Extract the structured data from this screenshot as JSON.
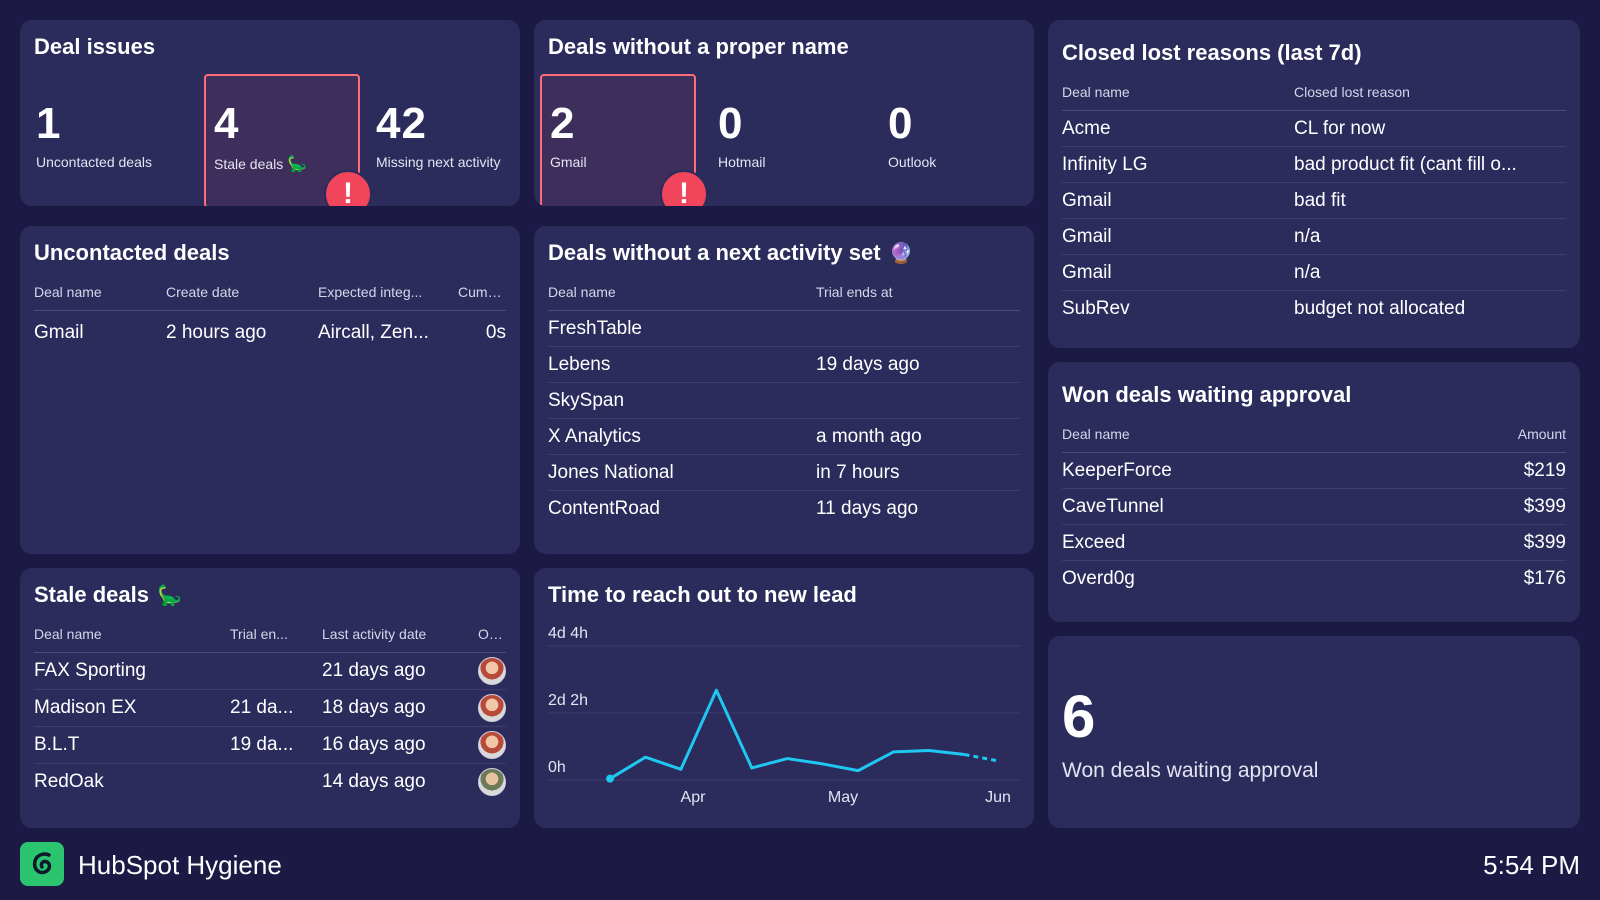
{
  "deal_issues": {
    "title": "Deal issues",
    "kpis": [
      {
        "value": "1",
        "label": "Uncontacted deals",
        "alert": false
      },
      {
        "value": "4",
        "label": "Stale deals",
        "alert": true
      },
      {
        "value": "42",
        "label": "Missing next activity",
        "alert": false
      }
    ],
    "alert_symbol": "!"
  },
  "improper_names": {
    "title": "Deals without a proper name",
    "kpis": [
      {
        "value": "2",
        "label": "Gmail",
        "alert": true
      },
      {
        "value": "0",
        "label": "Hotmail",
        "alert": false
      },
      {
        "value": "0",
        "label": "Outlook",
        "alert": false
      }
    ]
  },
  "closed_lost": {
    "title": "Closed lost reasons (last 7d)",
    "columns": [
      "Deal name",
      "Closed lost reason"
    ],
    "rows": [
      [
        "Acme",
        "CL for now"
      ],
      [
        "Infinity LG",
        "bad product fit (cant fill o..."
      ],
      [
        "Gmail",
        "bad fit"
      ],
      [
        "Gmail",
        "n/a"
      ],
      [
        "Gmail",
        "n/a"
      ],
      [
        "SubRev",
        "budget not allocated"
      ]
    ]
  },
  "uncontacted": {
    "title": "Uncontacted deals",
    "columns": [
      "Deal name",
      "Create date",
      "Expected integ...",
      "Cumul..."
    ],
    "rows": [
      [
        "Gmail",
        "2 hours ago",
        "Aircall, Zen...",
        "0s"
      ]
    ]
  },
  "no_next_activity": {
    "title": "Deals without a next activity set",
    "columns": [
      "Deal name",
      "Trial ends at"
    ],
    "rows": [
      [
        "FreshTable",
        ""
      ],
      [
        "Lebens",
        "19 days ago"
      ],
      [
        "SkySpan",
        ""
      ],
      [
        "X Analytics",
        "a month ago"
      ],
      [
        "Jones National",
        "in 7 hours"
      ],
      [
        "ContentRoad",
        "11 days ago"
      ]
    ]
  },
  "won_waiting": {
    "title": "Won deals waiting approval",
    "columns": [
      "Deal name",
      "Amount"
    ],
    "rows": [
      [
        "KeeperForce",
        "$219"
      ],
      [
        "CaveTunnel",
        "$399"
      ],
      [
        "Exceed",
        "$399"
      ],
      [
        "Overd0g",
        "$176"
      ]
    ]
  },
  "stale": {
    "title": "Stale deals",
    "columns": [
      "Deal name",
      "Trial en...",
      "Last activity date",
      "Ow..."
    ],
    "rows": [
      {
        "name": "FAX Sporting",
        "trial": "",
        "last": "21 days ago",
        "avatar": "alt-no"
      },
      {
        "name": "Madison EX",
        "trial": "21 da...",
        "last": "18 days ago",
        "avatar": "alt-no"
      },
      {
        "name": "B.L.T",
        "trial": "19 da...",
        "last": "16 days ago",
        "avatar": "alt-no"
      },
      {
        "name": "RedOak",
        "trial": "",
        "last": "14 days ago",
        "avatar": "alt-yes"
      }
    ]
  },
  "time_to_reach": {
    "title": "Time to reach out to new lead"
  },
  "chart_data": {
    "type": "line",
    "title": "Time to reach out to new lead",
    "y_ticks": [
      "4d 4h",
      "2d 2h",
      "0h"
    ],
    "y_tick_hours": [
      100,
      50,
      0
    ],
    "x_ticks": [
      "Apr",
      "May",
      "Jun"
    ],
    "ylim_hours": [
      0,
      100
    ],
    "grid": true,
    "series": [
      {
        "values_hours": [
          1,
          17,
          8,
          67,
          9,
          16,
          12,
          7,
          21,
          22,
          19,
          14
        ],
        "projected_from_index": 10,
        "color": "#1ec8f0"
      }
    ]
  },
  "won_count": {
    "value": "6",
    "label": "Won deals waiting approval"
  },
  "footer": {
    "app_name": "HubSpot Hygiene",
    "time": "5:54 PM"
  },
  "icons": {
    "stale": "dinosaur-icon",
    "crystal": "crystal-ball-icon"
  }
}
